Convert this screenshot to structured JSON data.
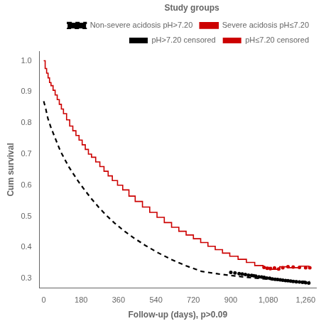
{
  "chart_data": {
    "type": "line",
    "xlabel": "Follow-up (days), p>0.09",
    "ylabel": "Cum survival",
    "xlim": [
      -20,
      1310
    ],
    "ylim": [
      0.27,
      1.03
    ],
    "xticks": [
      0,
      180,
      360,
      540,
      720,
      900,
      {
        "value": 1080,
        "label": "1,080"
      },
      {
        "value": 1260,
        "label": "1,260"
      }
    ],
    "yticks": [
      0.3,
      0.4,
      0.5,
      0.6,
      0.7,
      0.8,
      0.9,
      {
        "value": 1.0,
        "label": "1.0"
      }
    ],
    "grid": false,
    "legend": "upper right",
    "legend_title": "Study groups",
    "series": [
      {
        "name": "Non-severe acidosis pH>7.20",
        "type": "line",
        "line_style": "dashed",
        "color": "#000000",
        "x": [
          0,
          10,
          20,
          35,
          50,
          65,
          80,
          100,
          120,
          145,
          170,
          200,
          230,
          265,
          300,
          340,
          385,
          435,
          490,
          550,
          615,
          685,
          760,
          840,
          925,
          1010,
          1100,
          1190,
          1280
        ],
        "values": [
          0.87,
          0.845,
          0.815,
          0.785,
          0.76,
          0.735,
          0.71,
          0.685,
          0.66,
          0.634,
          0.609,
          0.582,
          0.556,
          0.529,
          0.504,
          0.479,
          0.454,
          0.43,
          0.406,
          0.383,
          0.361,
          0.341,
          0.323,
          0.315,
          0.308,
          0.302,
          0.297,
          0.293,
          0.29
        ]
      },
      {
        "name": "Severe acidosis pH≤7.20",
        "type": "step",
        "line_style": "solid",
        "color": "#cc0000",
        "x": [
          0,
          7,
          14,
          21,
          28,
          35,
          45,
          55,
          65,
          75,
          85,
          95,
          110,
          125,
          140,
          155,
          170,
          185,
          200,
          215,
          230,
          250,
          270,
          290,
          310,
          330,
          355,
          380,
          410,
          440,
          475,
          510,
          545,
          580,
          615,
          650,
          685,
          720,
          755,
          790,
          825,
          860,
          895,
          935,
          975,
          1015,
          1055,
          1095,
          1135,
          1180,
          1230,
          1275
        ],
        "values": [
          1.0,
          0.975,
          0.96,
          0.945,
          0.93,
          0.92,
          0.905,
          0.89,
          0.875,
          0.86,
          0.845,
          0.83,
          0.81,
          0.79,
          0.775,
          0.76,
          0.745,
          0.73,
          0.715,
          0.7,
          0.69,
          0.675,
          0.66,
          0.645,
          0.63,
          0.615,
          0.6,
          0.585,
          0.565,
          0.548,
          0.53,
          0.513,
          0.497,
          0.48,
          0.465,
          0.452,
          0.44,
          0.428,
          0.416,
          0.404,
          0.393,
          0.382,
          0.372,
          0.362,
          0.352,
          0.342,
          0.336,
          0.33,
          0.338,
          0.335,
          0.34,
          0.335
        ]
      },
      {
        "name": "pH>7.20 censored",
        "type": "scatter",
        "marker": "circle",
        "color": "#000000",
        "x": [
          900,
          920,
          940,
          955,
          970,
          985,
          1000,
          1010,
          1020,
          1035,
          1048,
          1060,
          1073,
          1087,
          1100,
          1113,
          1125,
          1138,
          1150,
          1163,
          1175,
          1188,
          1200,
          1215,
          1230,
          1245,
          1260,
          1275
        ],
        "values": [
          0.32,
          0.318,
          0.316,
          0.315,
          0.313,
          0.311,
          0.31,
          0.309,
          0.308,
          0.306,
          0.305,
          0.304,
          0.302,
          0.301,
          0.299,
          0.298,
          0.297,
          0.296,
          0.295,
          0.294,
          0.293,
          0.292,
          0.291,
          0.29,
          0.289,
          0.288,
          0.287,
          0.286
        ]
      },
      {
        "name": "pH≤7.20 censored",
        "type": "scatter",
        "marker": "circle",
        "color": "#cc0000",
        "x": [
          1060,
          1075,
          1090,
          1110,
          1130,
          1150,
          1175,
          1200,
          1230,
          1260,
          1280
        ],
        "values": [
          0.336,
          0.333,
          0.332,
          0.334,
          0.331,
          0.335,
          0.338,
          0.337,
          0.336,
          0.335,
          0.335
        ]
      }
    ]
  }
}
